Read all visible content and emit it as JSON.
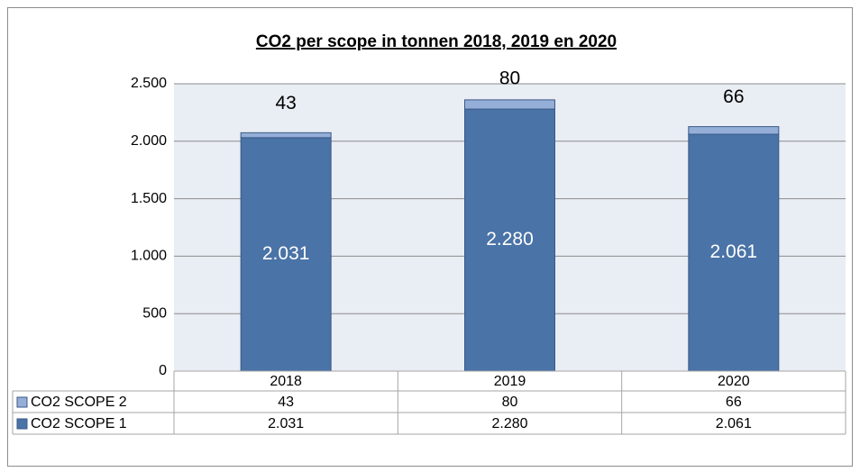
{
  "chart_data": {
    "type": "stacked_bar",
    "title": "CO2 per scope in tonnen 2018, 2019 en 2020",
    "categories": [
      "2018",
      "2019",
      "2020"
    ],
    "series": [
      {
        "name": "CO2 SCOPE 1",
        "color": "#4a73a7",
        "values": [
          2031,
          2280,
          2061
        ],
        "value_labels": [
          "2.031",
          "2.280",
          "2.061"
        ]
      },
      {
        "name": "CO2 SCOPE 2",
        "color": "#95aed8",
        "values": [
          43,
          80,
          66
        ]
      }
    ],
    "ylim": [
      0,
      2500
    ],
    "yticks": [
      0,
      500,
      {
        "value": 1000,
        "label": "1.000"
      },
      {
        "value": 1500,
        "label": "1.500"
      },
      {
        "value": 2000,
        "label": "2.000"
      },
      {
        "value": 2500,
        "label": "2.500"
      }
    ],
    "grid": true,
    "data_table": true
  }
}
